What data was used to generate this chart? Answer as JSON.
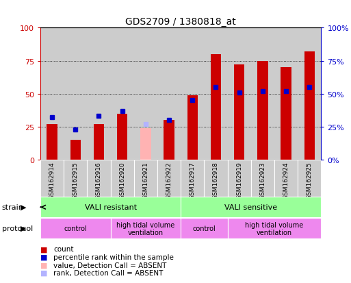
{
  "title": "GDS2709 / 1380818_at",
  "samples": [
    "GSM162914",
    "GSM162915",
    "GSM162916",
    "GSM162920",
    "GSM162921",
    "GSM162922",
    "GSM162917",
    "GSM162918",
    "GSM162919",
    "GSM162923",
    "GSM162924",
    "GSM162925"
  ],
  "count_values": [
    27,
    15,
    27,
    35,
    0,
    30,
    49,
    80,
    72,
    75,
    70,
    82
  ],
  "rank_values": [
    32,
    23,
    33,
    37,
    0,
    30,
    45,
    55,
    51,
    52,
    52,
    55
  ],
  "absent_count": [
    0,
    0,
    0,
    0,
    24,
    0,
    0,
    0,
    0,
    0,
    0,
    0
  ],
  "absent_rank": [
    0,
    0,
    0,
    0,
    27,
    0,
    0,
    0,
    0,
    0,
    0,
    0
  ],
  "bar_color_red": "#cc0000",
  "bar_color_pink": "#ffb3b3",
  "bar_color_blue": "#0000cc",
  "bar_color_lightblue": "#b3b3ff",
  "strain_color": "#99ff99",
  "protocol_color": "#ee88ee",
  "bg_color": "#ffffff",
  "ylim": [
    0,
    100
  ],
  "yticks": [
    0,
    25,
    50,
    75,
    100
  ],
  "tick_color_left": "#cc0000",
  "tick_color_right": "#0000cc",
  "sample_bg_color": "#cccccc",
  "bar_width": 0.45,
  "strain_blocks": [
    {
      "label": "VALI resistant",
      "xstart": 0,
      "xend": 6
    },
    {
      "label": "VALI sensitive",
      "xstart": 6,
      "xend": 12
    }
  ],
  "protocol_blocks": [
    {
      "label": "control",
      "xstart": 0,
      "xend": 3
    },
    {
      "label": "high tidal volume\nventilation",
      "xstart": 3,
      "xend": 6
    },
    {
      "label": "control",
      "xstart": 6,
      "xend": 8
    },
    {
      "label": "high tidal volume\nventilation",
      "xstart": 8,
      "xend": 12
    }
  ],
  "legend_items": [
    {
      "color": "#cc0000",
      "label": "count"
    },
    {
      "color": "#0000cc",
      "label": "percentile rank within the sample"
    },
    {
      "color": "#ffb3b3",
      "label": "value, Detection Call = ABSENT"
    },
    {
      "color": "#b3b3ff",
      "label": "rank, Detection Call = ABSENT"
    }
  ]
}
